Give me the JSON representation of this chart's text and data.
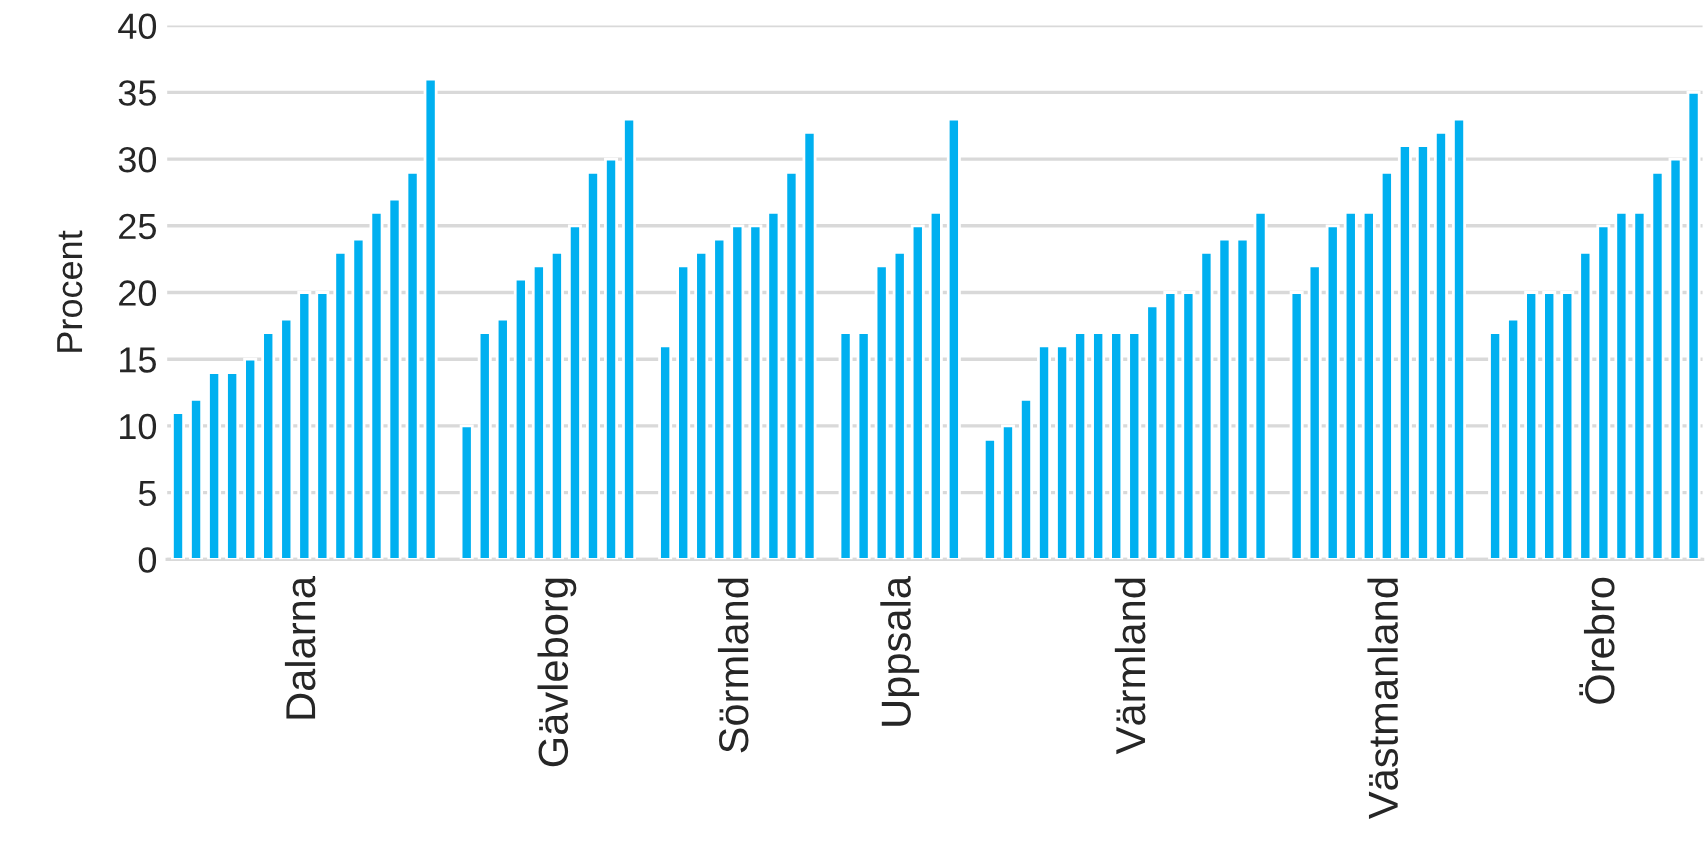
{
  "chart_data": {
    "type": "bar",
    "ylabel": "Procent",
    "color": "#00b0f0",
    "categories": [
      null,
      null,
      null,
      null,
      null,
      null,
      null,
      "Dalarna",
      null,
      null,
      null,
      null,
      null,
      null,
      null,
      null,
      null,
      null,
      null,
      null,
      null,
      "Gävleborg",
      null,
      null,
      null,
      null,
      null,
      null,
      null,
      null,
      null,
      "Sörmland",
      null,
      null,
      null,
      null,
      null,
      null,
      null,
      null,
      "Uppsala",
      null,
      null,
      null,
      null,
      null,
      null,
      null,
      null,
      null,
      null,
      null,
      null,
      "Värmland",
      null,
      null,
      null,
      null,
      null,
      null,
      null,
      null,
      null,
      null,
      null,
      null,
      null,
      "Västmanland",
      null,
      null,
      null,
      null,
      null,
      null,
      null,
      null,
      null,
      null,
      null,
      "Örebro",
      null,
      null,
      null,
      null,
      null
    ],
    "values": [
      11,
      12,
      14,
      14,
      15,
      17,
      18,
      20,
      20,
      23,
      24,
      26,
      27,
      29,
      36,
      null,
      10,
      17,
      18,
      21,
      22,
      23,
      25,
      29,
      30,
      33,
      null,
      16,
      22,
      23,
      24,
      25,
      25,
      26,
      29,
      32,
      null,
      17,
      17,
      22,
      23,
      25,
      26,
      33,
      null,
      9,
      10,
      12,
      16,
      16,
      17,
      17,
      17,
      17,
      19,
      20,
      20,
      23,
      24,
      24,
      26,
      null,
      20,
      22,
      25,
      26,
      26,
      29,
      31,
      31,
      32,
      33,
      null,
      17,
      18,
      20,
      20,
      20,
      23,
      25,
      26,
      26,
      29,
      30,
      35
    ],
    "ylim": [
      0,
      40
    ],
    "yticks": [
      0,
      5,
      10,
      15,
      20,
      25,
      30,
      35,
      40
    ],
    "grid": "y"
  }
}
